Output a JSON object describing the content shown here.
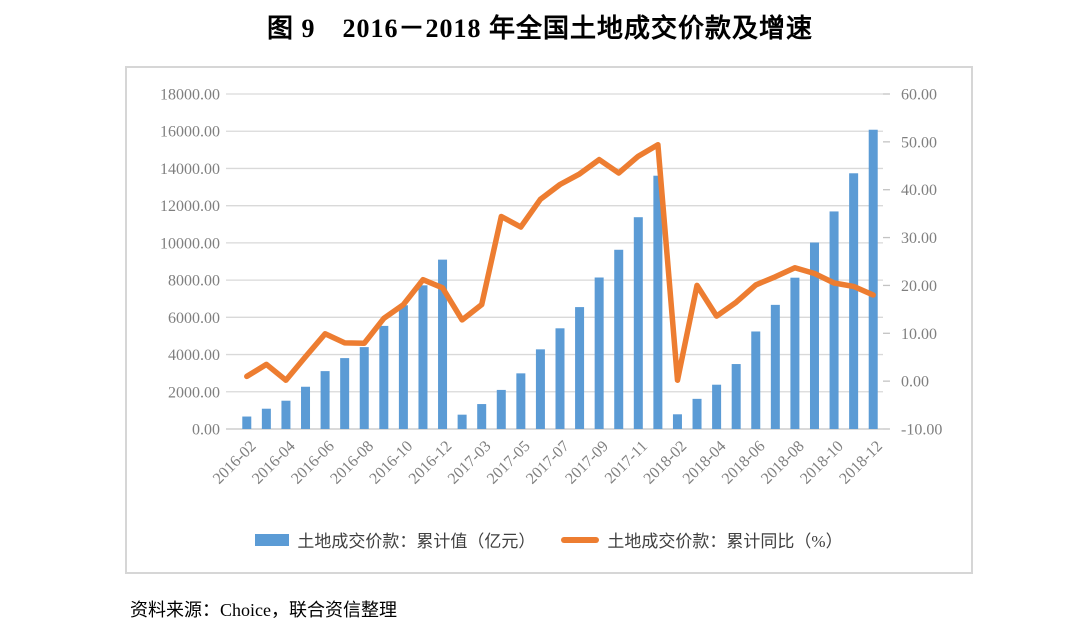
{
  "title": "图 9　2016－2018 年全国土地成交价款及增速",
  "source": "资料来源：Choice，联合资信整理",
  "colors": {
    "bar": "#5B9BD5",
    "line": "#ED7D31",
    "gridline": "#D9D9D9",
    "axis_label": "#7F7F7F",
    "frame_border": "#D6D6D6"
  },
  "chart_data": {
    "type": "bar",
    "subtype": "combo-bar-line",
    "title": "图 9　2016－2018 年全国土地成交价款及增速",
    "grid": true,
    "legend_position": "bottom",
    "categories": [
      "2016-02",
      "2016-03",
      "2016-04",
      "2016-05",
      "2016-06",
      "2016-07",
      "2016-08",
      "2016-09",
      "2016-10",
      "2016-11",
      "2016-12",
      "2017-02",
      "2017-03",
      "2017-04",
      "2017-05",
      "2017-06",
      "2017-07",
      "2017-08",
      "2017-09",
      "2017-10",
      "2017-11",
      "2017-12",
      "2018-02",
      "2018-03",
      "2018-04",
      "2018-05",
      "2018-06",
      "2018-07",
      "2018-08",
      "2018-09",
      "2018-10",
      "2018-11",
      "2018-12"
    ],
    "x_tick_labels": [
      "2016-02",
      "2016-04",
      "2016-06",
      "2016-08",
      "2016-10",
      "2016-12",
      "2017-03",
      "2017-05",
      "2017-07",
      "2017-09",
      "2017-11",
      "2018-02",
      "2018-04",
      "2018-06",
      "2018-08",
      "2018-10",
      "2018-12"
    ],
    "series": [
      {
        "name": "土地成交价款：累计值（亿元）",
        "type": "bar",
        "axis": "left",
        "color": "#5B9BD5",
        "values": [
          670,
          1090,
          1520,
          2270,
          3110,
          3810,
          4400,
          5540,
          6650,
          7720,
          9100,
          770,
          1340,
          2100,
          2990,
          4280,
          5410,
          6550,
          8140,
          9630,
          11380,
          13610,
          790,
          1620,
          2380,
          3490,
          5240,
          6670,
          8130,
          10020,
          11690,
          13740,
          16080
        ]
      },
      {
        "name": "土地成交价款：累计同比（%）",
        "type": "line",
        "axis": "right",
        "color": "#ED7D31",
        "values": [
          1.0,
          3.5,
          0.2,
          5.1,
          9.9,
          8.0,
          7.9,
          13.1,
          16.0,
          21.2,
          19.5,
          12.8,
          16.0,
          34.4,
          32.2,
          38.0,
          41.1,
          43.3,
          46.3,
          43.5,
          47.0,
          49.4,
          0.2,
          20.0,
          13.6,
          16.5,
          20.1,
          21.8,
          23.7,
          22.5,
          20.5,
          19.8,
          18.0
        ]
      }
    ],
    "left_axis": {
      "min": 0,
      "max": 18000,
      "step": 2000,
      "labels": [
        "18000.00",
        "16000.00",
        "14000.00",
        "12000.00",
        "10000.00",
        "8000.00",
        "6000.00",
        "4000.00",
        "2000.00",
        "0.00"
      ]
    },
    "right_axis": {
      "min": -10,
      "max": 60,
      "step": 10,
      "labels": [
        "60.00",
        "50.00",
        "40.00",
        "30.00",
        "20.00",
        "10.00",
        "0.00",
        "-10.00"
      ]
    }
  }
}
